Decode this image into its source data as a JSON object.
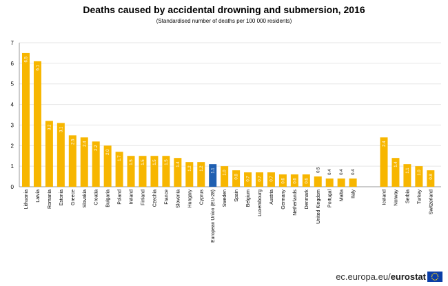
{
  "title": "Deaths caused by accidental drowning and submersion, 2016",
  "subtitle": "(Standardised  number  of deaths per 100 000 residents)",
  "footer": {
    "source_prefix": "ec.europa.eu/",
    "source_brand": "eurostat"
  },
  "colors": {
    "bar": "#f7b600",
    "highlight": "#1f5fb1",
    "grid": "#e6e6e6",
    "axis": "#999999"
  },
  "chart_data": {
    "type": "bar",
    "title": "Deaths caused by accidental drowning and submersion, 2016",
    "subtitle": "(Standardised  number  of deaths per 100 000 residents)",
    "ylim": [
      0,
      7
    ],
    "yticks": [
      0,
      1,
      2,
      3,
      4,
      5,
      6,
      7
    ],
    "grid": true,
    "groups": [
      {
        "categories": [
          "Lithuania",
          "Latvia",
          "Romania",
          "Estonia",
          "Greece",
          "Slovakia",
          "Croatia",
          "Bulgaria",
          "Poland",
          "Ireland",
          "Finland",
          "Czechia",
          "France",
          "Slovenia",
          "Hungary",
          "Cyprus",
          "European Union (EU-28)",
          "Sweden",
          "Spain",
          "Belgium",
          "Luxembourg",
          "Austria",
          "Germany",
          "Netherlands",
          "Denmark",
          "United Kingdom",
          "Portugal",
          "Malta",
          "Italy"
        ],
        "values": [
          6.5,
          6.1,
          3.2,
          3.1,
          2.5,
          2.4,
          2.2,
          2.0,
          1.7,
          1.5,
          1.5,
          1.5,
          1.5,
          1.4,
          1.2,
          1.2,
          1.1,
          1.0,
          0.8,
          0.7,
          0.7,
          0.7,
          0.6,
          0.6,
          0.6,
          0.5,
          0.4,
          0.4,
          0.4
        ],
        "labels": [
          "6.5",
          "6.1",
          "3.2",
          "3.1",
          "2.5",
          "2.4",
          "2.2",
          "2.0",
          "1.7",
          "1.5",
          "1.5",
          "1.5",
          "1.5",
          "1.4",
          "1.2",
          "1.2",
          "1.1",
          "1.0",
          "0.8",
          "0.7",
          "0.7",
          "0.7",
          "0.6",
          "0.6",
          "0.6",
          "0.5",
          "0.4",
          "0.4",
          "0.4"
        ],
        "highlight": "European Union (EU-28)"
      },
      {
        "categories": [
          "Iceland",
          "Norway",
          "Serbia",
          "Turkey",
          "Switzerland"
        ],
        "values": [
          2.4,
          1.4,
          1.1,
          1.0,
          0.8
        ],
        "labels": [
          "2.4",
          "1.4",
          "1.1",
          "1.0",
          "0.8"
        ]
      }
    ]
  }
}
